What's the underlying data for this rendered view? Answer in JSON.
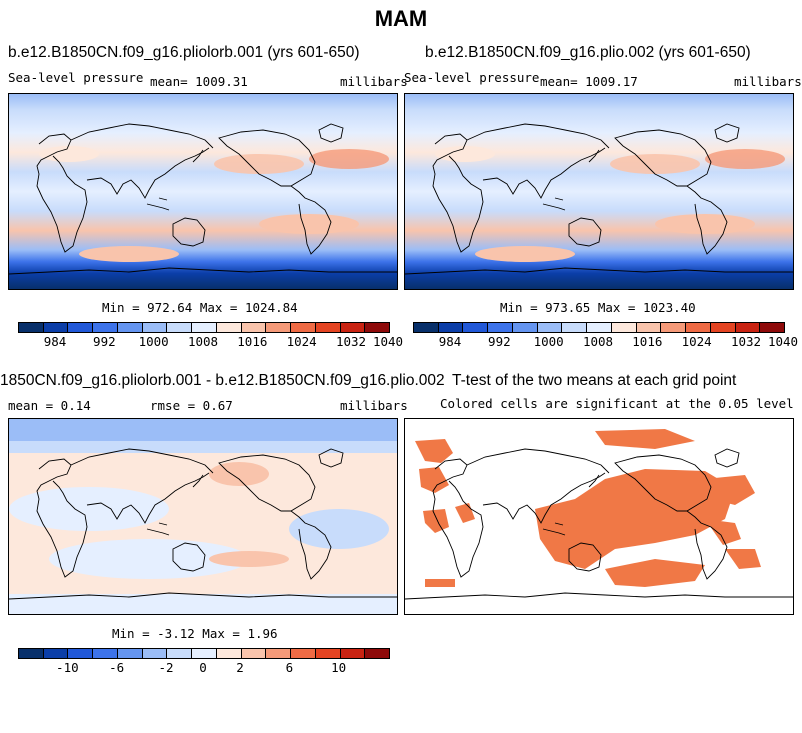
{
  "title": "MAM",
  "panels": [
    {
      "title": "b.e12.B1850CN.f09_g16.pliolorb.001 (yrs 601-650)",
      "field": "Sea-level pressure",
      "mean": "mean= 1009.31",
      "units": "millibars",
      "minmax": "Min = 972.64 Max = 1024.84"
    },
    {
      "title": "b.e12.B1850CN.f09_g16.plio.002 (yrs 601-650)",
      "field": "Sea-level pressure",
      "mean": "mean= 1009.17",
      "units": "millibars",
      "minmax": "Min = 973.65 Max = 1023.40"
    },
    {
      "title": "1850CN.f09_g16.pliolorb.001 - b.e12.B1850CN.f09_g16.plio.002",
      "mean": "mean =   0.14",
      "rmse": "rmse =   0.67",
      "units": "millibars",
      "minmax": "Min = -3.12 Max =  1.96"
    },
    {
      "title": "T-test of the two means at each grid point",
      "subtitle": "Colored cells are significant at the 0.05 level"
    }
  ],
  "colorbar_abs": {
    "colors": [
      "#08306b",
      "#0b3ea8",
      "#2158d8",
      "#3d73ea",
      "#6595f0",
      "#9bbdf7",
      "#c8dcfb",
      "#e5efff",
      "#fde8dc",
      "#f9c4ac",
      "#f59a79",
      "#ef6b45",
      "#e44422",
      "#c92312",
      "#8e0a0a"
    ],
    "labels": [
      "984",
      "992",
      "1000",
      "1008",
      "1016",
      "1024",
      "1032",
      "1040"
    ]
  },
  "colorbar_diff": {
    "colors": [
      "#08306b",
      "#0b3ea8",
      "#2158d8",
      "#3d73ea",
      "#6595f0",
      "#9bbdf7",
      "#c8dcfb",
      "#e5efff",
      "#fde8dc",
      "#f9c4ac",
      "#f59a79",
      "#ef6b45",
      "#e44422",
      "#c92312",
      "#8e0a0a"
    ],
    "labels": [
      "-10",
      "-6",
      "-2",
      "0",
      "2",
      "6",
      "10"
    ]
  },
  "significance_color": "#f07846"
}
